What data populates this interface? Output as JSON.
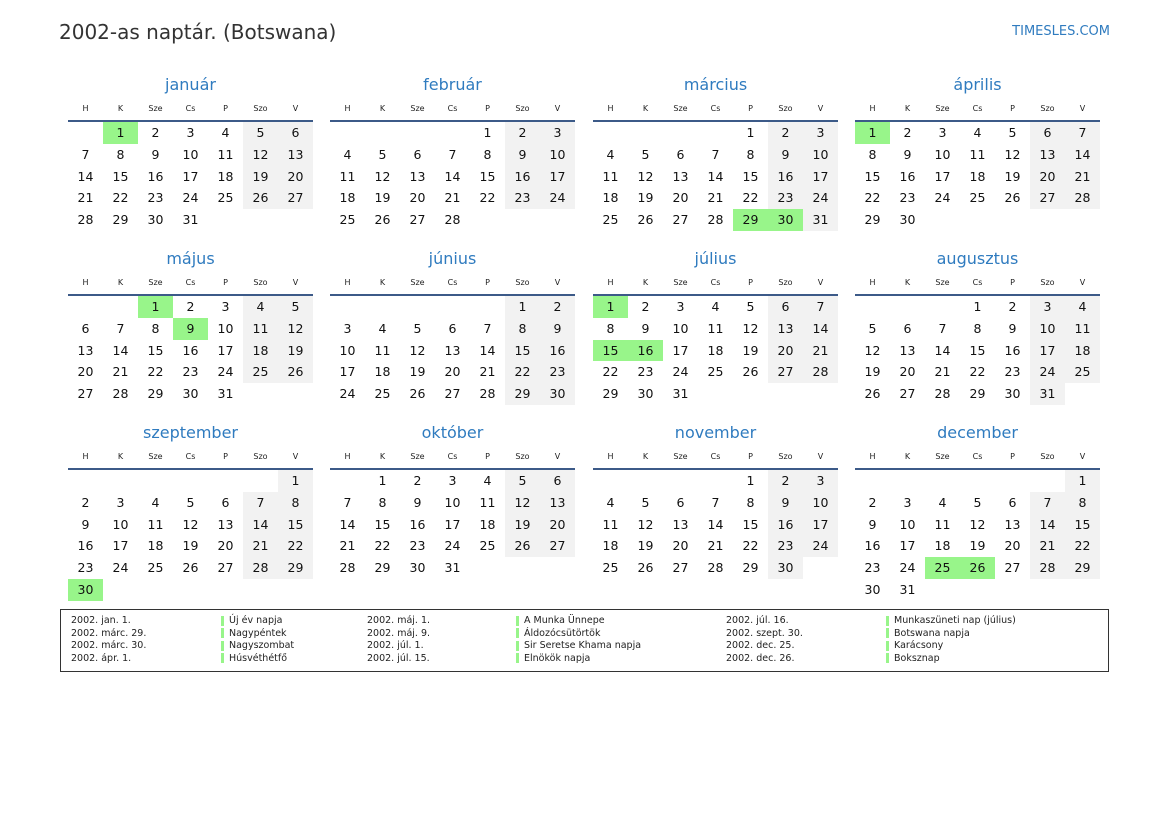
{
  "header": {
    "title": "2002-as naptár. (Botswana)",
    "brand": "TIMESLES.COM"
  },
  "weekdays": [
    "H",
    "K",
    "Sze",
    "Cs",
    "P",
    "Szo",
    "V"
  ],
  "colors": {
    "accent": "#2f7bbf",
    "holiday": "#98f58a",
    "weekend": "#f2f2f2"
  },
  "months": [
    {
      "name": "január",
      "first_weekday_offset": 1,
      "days": 31,
      "holidays": [
        1
      ]
    },
    {
      "name": "február",
      "first_weekday_offset": 4,
      "days": 28,
      "holidays": []
    },
    {
      "name": "március",
      "first_weekday_offset": 4,
      "days": 31,
      "holidays": [
        29,
        30
      ]
    },
    {
      "name": "április",
      "first_weekday_offset": 0,
      "days": 30,
      "holidays": [
        1
      ]
    },
    {
      "name": "május",
      "first_weekday_offset": 2,
      "days": 31,
      "holidays": [
        1,
        9
      ]
    },
    {
      "name": "június",
      "first_weekday_offset": 5,
      "days": 30,
      "holidays": []
    },
    {
      "name": "július",
      "first_weekday_offset": 0,
      "days": 31,
      "holidays": [
        1,
        15,
        16
      ]
    },
    {
      "name": "augusztus",
      "first_weekday_offset": 3,
      "days": 31,
      "holidays": []
    },
    {
      "name": "szeptember",
      "first_weekday_offset": 6,
      "days": 30,
      "holidays": [
        30
      ]
    },
    {
      "name": "október",
      "first_weekday_offset": 1,
      "days": 31,
      "holidays": []
    },
    {
      "name": "november",
      "first_weekday_offset": 4,
      "days": 30,
      "holidays": []
    },
    {
      "name": "december",
      "first_weekday_offset": 6,
      "days": 31,
      "holidays": [
        25,
        26
      ]
    }
  ],
  "holidays": [
    {
      "date": "2002. jan. 1.",
      "name": "Új év napja"
    },
    {
      "date": "2002. márc. 29.",
      "name": "Nagypéntek"
    },
    {
      "date": "2002. márc. 30.",
      "name": "Nagyszombat"
    },
    {
      "date": "2002. ápr. 1.",
      "name": "Húsvéthétfő"
    },
    {
      "date": "2002. máj. 1.",
      "name": "A Munka Ünnepe"
    },
    {
      "date": "2002. máj. 9.",
      "name": "Áldozócsütörtök"
    },
    {
      "date": "2002. júl. 1.",
      "name": "Sir Seretse Khama napja"
    },
    {
      "date": "2002. júl. 15.",
      "name": "Elnökök napja"
    },
    {
      "date": "2002. júl. 16.",
      "name": "Munkaszüneti nap (július)"
    },
    {
      "date": "2002. szept. 30.",
      "name": "Botswana napja"
    },
    {
      "date": "2002. dec. 25.",
      "name": "Karácsony"
    },
    {
      "date": "2002. dec. 26.",
      "name": "Boksznap"
    }
  ]
}
